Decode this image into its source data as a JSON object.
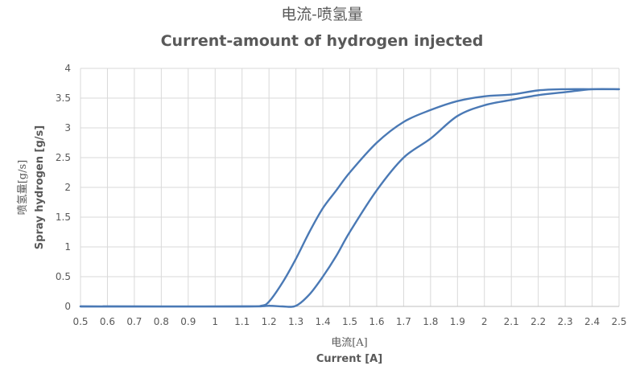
{
  "chart_data": {
    "type": "line",
    "title_cn": "电流-喷氢量",
    "title_en": "Current-amount of hydrogen injected",
    "xlabel_cn": "电流[A]",
    "xlabel_en": "Current [A]",
    "ylabel_cn": "喷氢量[g/s]",
    "ylabel_en": "Spray hydrogen [g/s]",
    "xlim": [
      0.5,
      2.5
    ],
    "ylim": [
      0,
      4
    ],
    "grid": true,
    "legend": "none",
    "x_ticks": [
      "0.5",
      "0.6",
      "0.7",
      "0.8",
      "0.9",
      "1",
      "1.1",
      "1.2",
      "1.3",
      "1.4",
      "1.5",
      "1.6",
      "1.7",
      "1.8",
      "1.9",
      "2",
      "2.1",
      "2.2",
      "2.3",
      "2.4",
      "2.5"
    ],
    "y_ticks": [
      "0",
      "0.5",
      "1",
      "1.5",
      "2",
      "2.5",
      "3",
      "3.5",
      "4"
    ],
    "line_color": "#4a79b5",
    "series": [
      {
        "points": [
          [
            0.5,
            0
          ],
          [
            1.1,
            0
          ],
          [
            1.17,
            0.01
          ],
          [
            1.2,
            0.08
          ],
          [
            1.25,
            0.4
          ],
          [
            1.3,
            0.8
          ],
          [
            1.35,
            1.25
          ],
          [
            1.4,
            1.65
          ],
          [
            1.45,
            1.95
          ],
          [
            1.5,
            2.25
          ],
          [
            1.6,
            2.75
          ],
          [
            1.7,
            3.1
          ],
          [
            1.8,
            3.3
          ],
          [
            1.9,
            3.45
          ],
          [
            2.0,
            3.53
          ],
          [
            2.1,
            3.56
          ],
          [
            2.2,
            3.63
          ],
          [
            2.3,
            3.65
          ],
          [
            2.4,
            3.65
          ],
          [
            2.5,
            3.65
          ]
        ]
      },
      {
        "points": [
          [
            0.5,
            0
          ],
          [
            1.1,
            0
          ],
          [
            1.2,
            0.01
          ],
          [
            1.25,
            0.0
          ],
          [
            1.3,
            0.01
          ],
          [
            1.35,
            0.2
          ],
          [
            1.4,
            0.5
          ],
          [
            1.45,
            0.85
          ],
          [
            1.5,
            1.25
          ],
          [
            1.6,
            1.95
          ],
          [
            1.7,
            2.5
          ],
          [
            1.8,
            2.82
          ],
          [
            1.9,
            3.2
          ],
          [
            2.0,
            3.38
          ],
          [
            2.1,
            3.47
          ],
          [
            2.2,
            3.55
          ],
          [
            2.3,
            3.6
          ],
          [
            2.4,
            3.65
          ],
          [
            2.5,
            3.65
          ]
        ]
      }
    ]
  }
}
